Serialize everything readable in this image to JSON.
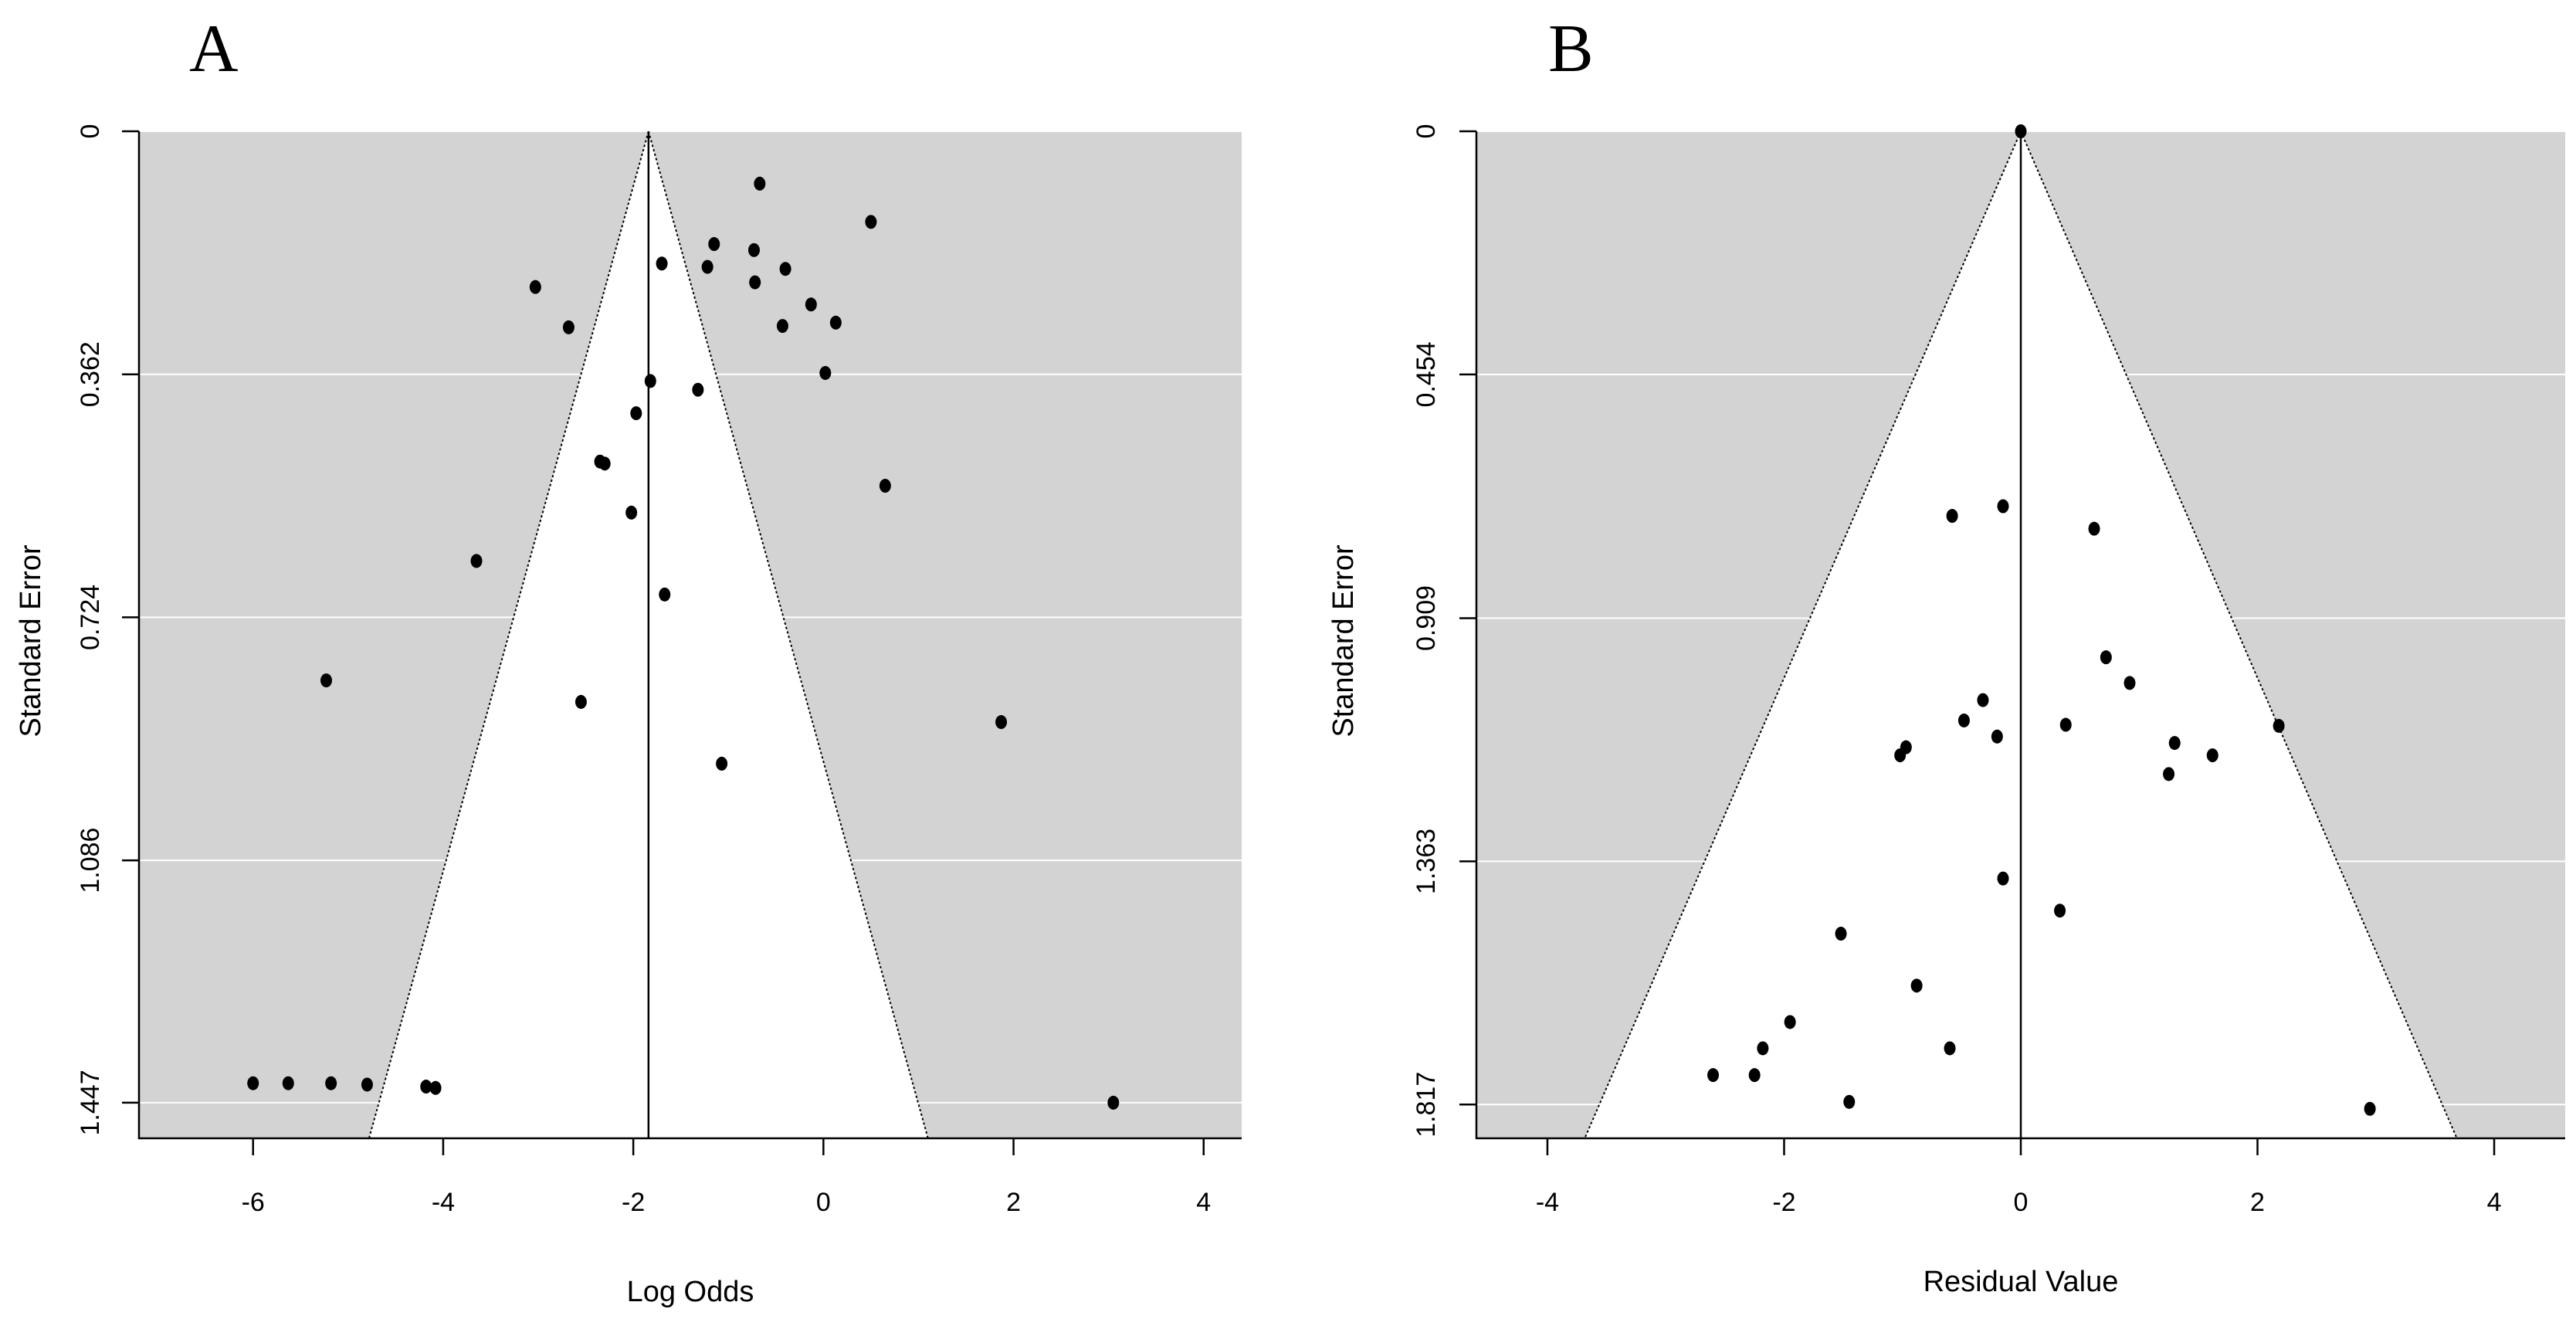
{
  "chart_data": [
    {
      "type": "scatter",
      "subtype": "funnel-plot",
      "panel_label": "A",
      "title": "",
      "xlabel": "Log Odds",
      "ylabel": "Standard Error",
      "xlim": [
        -7.2,
        4.4
      ],
      "ylim": [
        1.5,
        0
      ],
      "xticks": [
        -6,
        -4,
        -2,
        0,
        2,
        4
      ],
      "xtick_labels": [
        "-6",
        "-4",
        "-2",
        "0",
        "2",
        "4"
      ],
      "yticks": [
        0,
        0.362,
        0.724,
        1.086,
        1.447
      ],
      "ytick_labels": [
        "0",
        "0.362",
        "0.724",
        "1.086",
        "1.447"
      ],
      "center": -1.84,
      "funnel_z": 1.96,
      "background": "#d3d3d3",
      "funnel_fill": "#ffffff",
      "points": [
        {
          "x": -0.67,
          "y": 0.078
        },
        {
          "x": 0.5,
          "y": 0.135
        },
        {
          "x": -1.15,
          "y": 0.168
        },
        {
          "x": -0.73,
          "y": 0.177
        },
        {
          "x": -1.7,
          "y": 0.197
        },
        {
          "x": -1.22,
          "y": 0.202
        },
        {
          "x": -0.4,
          "y": 0.205
        },
        {
          "x": -0.72,
          "y": 0.225
        },
        {
          "x": -3.03,
          "y": 0.232
        },
        {
          "x": -0.13,
          "y": 0.258
        },
        {
          "x": 0.13,
          "y": 0.285
        },
        {
          "x": -0.43,
          "y": 0.29
        },
        {
          "x": -2.68,
          "y": 0.292
        },
        {
          "x": 0.02,
          "y": 0.36
        },
        {
          "x": -1.82,
          "y": 0.372
        },
        {
          "x": -1.32,
          "y": 0.385
        },
        {
          "x": -1.97,
          "y": 0.42
        },
        {
          "x": -2.35,
          "y": 0.492
        },
        {
          "x": -2.3,
          "y": 0.495
        },
        {
          "x": 0.65,
          "y": 0.528
        },
        {
          "x": -2.02,
          "y": 0.568
        },
        {
          "x": -3.65,
          "y": 0.64
        },
        {
          "x": -1.67,
          "y": 0.69
        },
        {
          "x": -5.23,
          "y": 0.818
        },
        {
          "x": -2.55,
          "y": 0.85
        },
        {
          "x": 1.87,
          "y": 0.88
        },
        {
          "x": -1.07,
          "y": 0.942
        },
        {
          "x": -6.0,
          "y": 1.418
        },
        {
          "x": -5.63,
          "y": 1.418
        },
        {
          "x": -5.18,
          "y": 1.418
        },
        {
          "x": -4.8,
          "y": 1.42
        },
        {
          "x": -4.18,
          "y": 1.423
        },
        {
          "x": -4.08,
          "y": 1.425
        },
        {
          "x": 3.05,
          "y": 1.447
        }
      ]
    },
    {
      "type": "scatter",
      "subtype": "funnel-plot",
      "panel_label": "B",
      "title": "",
      "xlabel": "Residual Value",
      "ylabel": "Standard Error",
      "xlim": [
        -4.6,
        4.6
      ],
      "ylim": [
        1.88,
        0
      ],
      "xticks": [
        -4,
        -2,
        0,
        2,
        4
      ],
      "xtick_labels": [
        "-4",
        "-2",
        "0",
        "2",
        "4"
      ],
      "yticks": [
        0,
        0.454,
        0.909,
        1.363,
        1.817
      ],
      "ytick_labels": [
        "0",
        "0.454",
        "0.909",
        "1.363",
        "1.817"
      ],
      "center": 0,
      "funnel_z": 1.96,
      "background": "#d3d3d3",
      "funnel_fill": "#ffffff",
      "points": [
        {
          "x": 0.0,
          "y": 0.0
        },
        {
          "x": -0.15,
          "y": 0.7
        },
        {
          "x": -0.58,
          "y": 0.718
        },
        {
          "x": 0.62,
          "y": 0.742
        },
        {
          "x": 0.72,
          "y": 0.982
        },
        {
          "x": 0.92,
          "y": 1.03
        },
        {
          "x": -0.32,
          "y": 1.062
        },
        {
          "x": -0.48,
          "y": 1.1
        },
        {
          "x": 0.38,
          "y": 1.108
        },
        {
          "x": 2.18,
          "y": 1.11
        },
        {
          "x": -0.2,
          "y": 1.13
        },
        {
          "x": 1.3,
          "y": 1.142
        },
        {
          "x": -0.97,
          "y": 1.15
        },
        {
          "x": -1.02,
          "y": 1.165
        },
        {
          "x": 1.62,
          "y": 1.165
        },
        {
          "x": 1.25,
          "y": 1.2
        },
        {
          "x": -0.15,
          "y": 1.395
        },
        {
          "x": 0.33,
          "y": 1.455
        },
        {
          "x": -1.52,
          "y": 1.498
        },
        {
          "x": -0.88,
          "y": 1.595
        },
        {
          "x": -1.95,
          "y": 1.663
        },
        {
          "x": -2.18,
          "y": 1.712
        },
        {
          "x": -0.6,
          "y": 1.712
        },
        {
          "x": -2.6,
          "y": 1.762
        },
        {
          "x": -2.25,
          "y": 1.762
        },
        {
          "x": -1.45,
          "y": 1.812
        },
        {
          "x": 2.95,
          "y": 1.825
        }
      ]
    }
  ]
}
